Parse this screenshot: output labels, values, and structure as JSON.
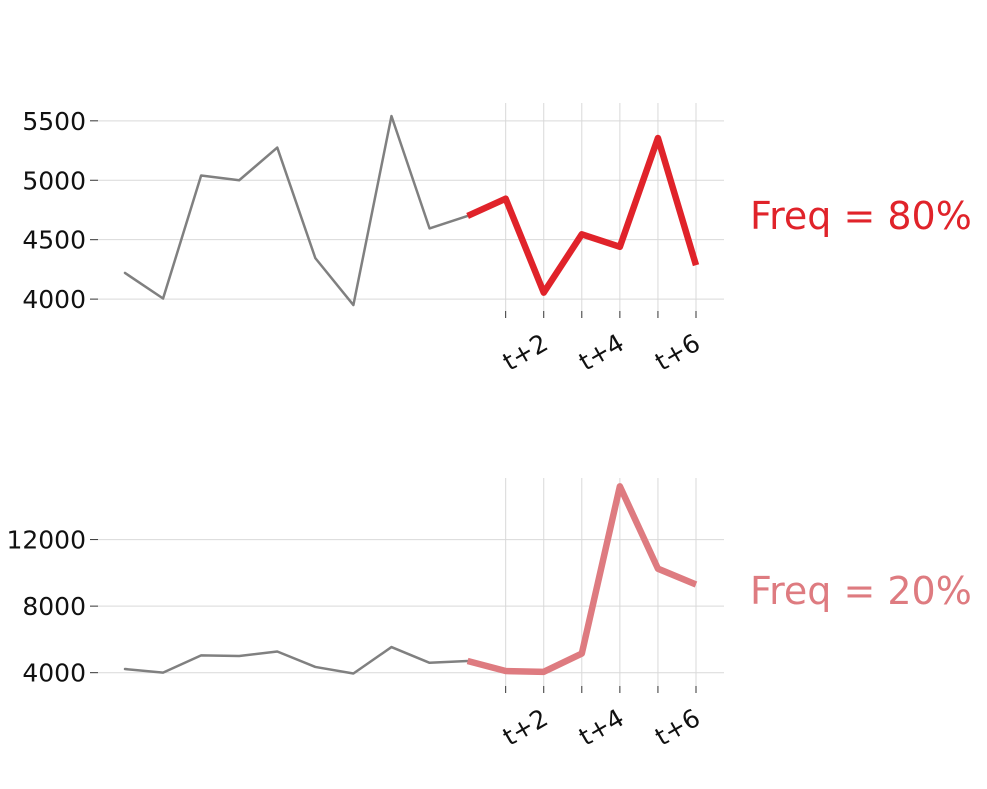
{
  "chart_data": [
    {
      "type": "line",
      "history": {
        "x": [
          1,
          2,
          3,
          4,
          5,
          6,
          7,
          8,
          9,
          10
        ],
        "values": [
          4220,
          4005,
          5040,
          5000,
          5275,
          4345,
          3950,
          5540,
          4595,
          4700
        ],
        "color": "#808080"
      },
      "forecast": {
        "x": [
          10,
          11,
          12,
          13,
          14,
          15,
          16
        ],
        "values": [
          4700,
          4845,
          4055,
          4545,
          4440,
          5355,
          4285
        ],
        "color": "#e0232a"
      },
      "ylim": [
        3900,
        5650
      ],
      "yticks": [
        {
          "value": 4000,
          "label": "4000"
        },
        {
          "value": 4500,
          "label": "4500"
        },
        {
          "value": 5000,
          "label": "5000"
        },
        {
          "value": 5500,
          "label": "5500"
        }
      ],
      "xticks": [
        {
          "value": 11,
          "label": ""
        },
        {
          "value": 12,
          "label": "t+2"
        },
        {
          "value": 13,
          "label": ""
        },
        {
          "value": 14,
          "label": "t+4"
        },
        {
          "value": 15,
          "label": ""
        },
        {
          "value": 16,
          "label": "t+6"
        }
      ],
      "grid": true,
      "annotation": {
        "text": "Freq = 80%",
        "color": "#e0232a"
      }
    },
    {
      "type": "line",
      "history": {
        "x": [
          1,
          2,
          3,
          4,
          5,
          6,
          7,
          8,
          9,
          10
        ],
        "values": [
          4220,
          4005,
          5040,
          5000,
          5275,
          4345,
          3950,
          5540,
          4595,
          4700
        ],
        "color": "#808080"
      },
      "forecast": {
        "x": [
          10,
          11,
          12,
          13,
          14,
          15,
          16
        ],
        "values": [
          4700,
          4100,
          4050,
          5150,
          15200,
          10250,
          9300
        ],
        "color": "#de7b80"
      },
      "ylim": [
        3200,
        15700
      ],
      "yticks": [
        {
          "value": 4000,
          "label": "4000"
        },
        {
          "value": 8000,
          "label": "8000"
        },
        {
          "value": 12000,
          "label": "12000"
        }
      ],
      "xticks": [
        {
          "value": 11,
          "label": ""
        },
        {
          "value": 12,
          "label": "t+2"
        },
        {
          "value": 13,
          "label": ""
        },
        {
          "value": 14,
          "label": "t+4"
        },
        {
          "value": 15,
          "label": ""
        },
        {
          "value": 16,
          "label": "t+6"
        }
      ],
      "grid": true,
      "annotation": {
        "text": "Freq = 20%",
        "color": "#de7b80"
      }
    }
  ]
}
